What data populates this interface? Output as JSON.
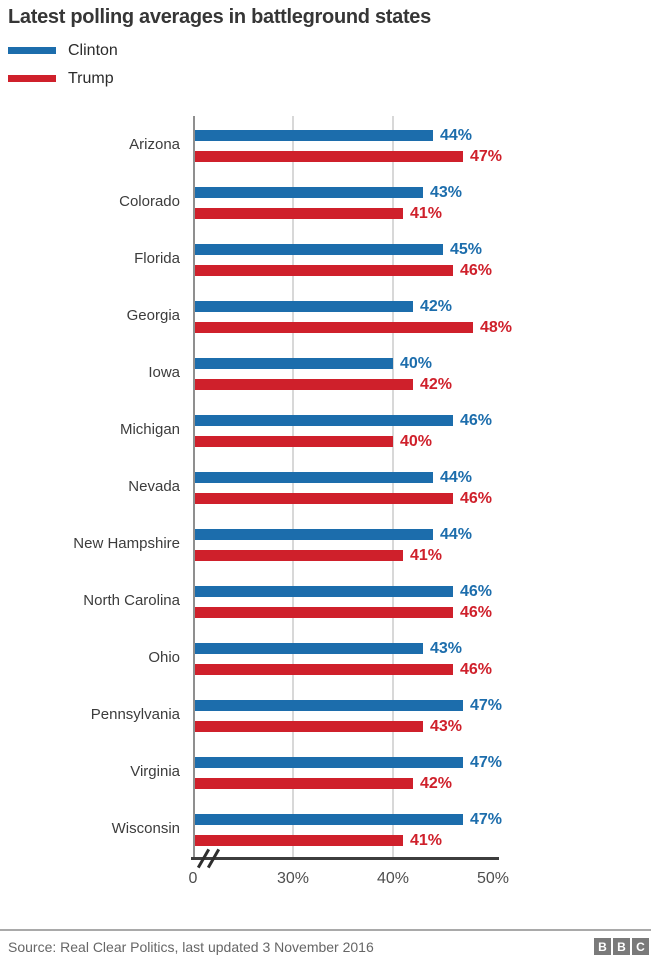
{
  "title": "Latest polling averages in battleground states",
  "legend": [
    {
      "label": "Clinton",
      "color": "#1c6dac"
    },
    {
      "label": "Trump",
      "color": "#cf202b"
    }
  ],
  "colors": {
    "clinton_blue": "#1c6dac",
    "trump_red": "#cf202b",
    "axis_dark": "#3d3d3d",
    "grid_gray": "#d8d8d8"
  },
  "chart_data": {
    "type": "bar",
    "orientation": "horizontal",
    "title": "Latest polling averages in battleground states",
    "xlabel": "",
    "ylabel": "",
    "value_suffix": "%",
    "legend_position": "top-left",
    "grid": "vertical-only",
    "categories": [
      "Arizona",
      "Colorado",
      "Florida",
      "Georgia",
      "Iowa",
      "Michigan",
      "Nevada",
      "New Hampshire",
      "North Carolina",
      "Ohio",
      "Pennsylvania",
      "Virginia",
      "Wisconsin"
    ],
    "series": [
      {
        "name": "Clinton",
        "color": "#1c6dac",
        "values": [
          44,
          43,
          45,
          42,
          40,
          46,
          44,
          44,
          46,
          43,
          47,
          47,
          47
        ]
      },
      {
        "name": "Trump",
        "color": "#cf202b",
        "values": [
          47,
          41,
          46,
          48,
          42,
          40,
          46,
          41,
          46,
          46,
          43,
          42,
          41
        ]
      }
    ],
    "axis": {
      "xlim": [
        0,
        50
      ],
      "break_value": 30,
      "broken_axis": true,
      "ticks": [
        {
          "label": "0",
          "value": 0
        },
        {
          "label": "30%",
          "value": 30
        },
        {
          "label": "40%",
          "value": 40
        },
        {
          "label": "50%",
          "value": 50
        }
      ],
      "gridline_values": [
        30,
        40
      ]
    }
  },
  "footer": {
    "source": "Source: Real Clear Politics, last updated 3 November 2016",
    "logo_letters": [
      "B",
      "B",
      "C"
    ]
  }
}
